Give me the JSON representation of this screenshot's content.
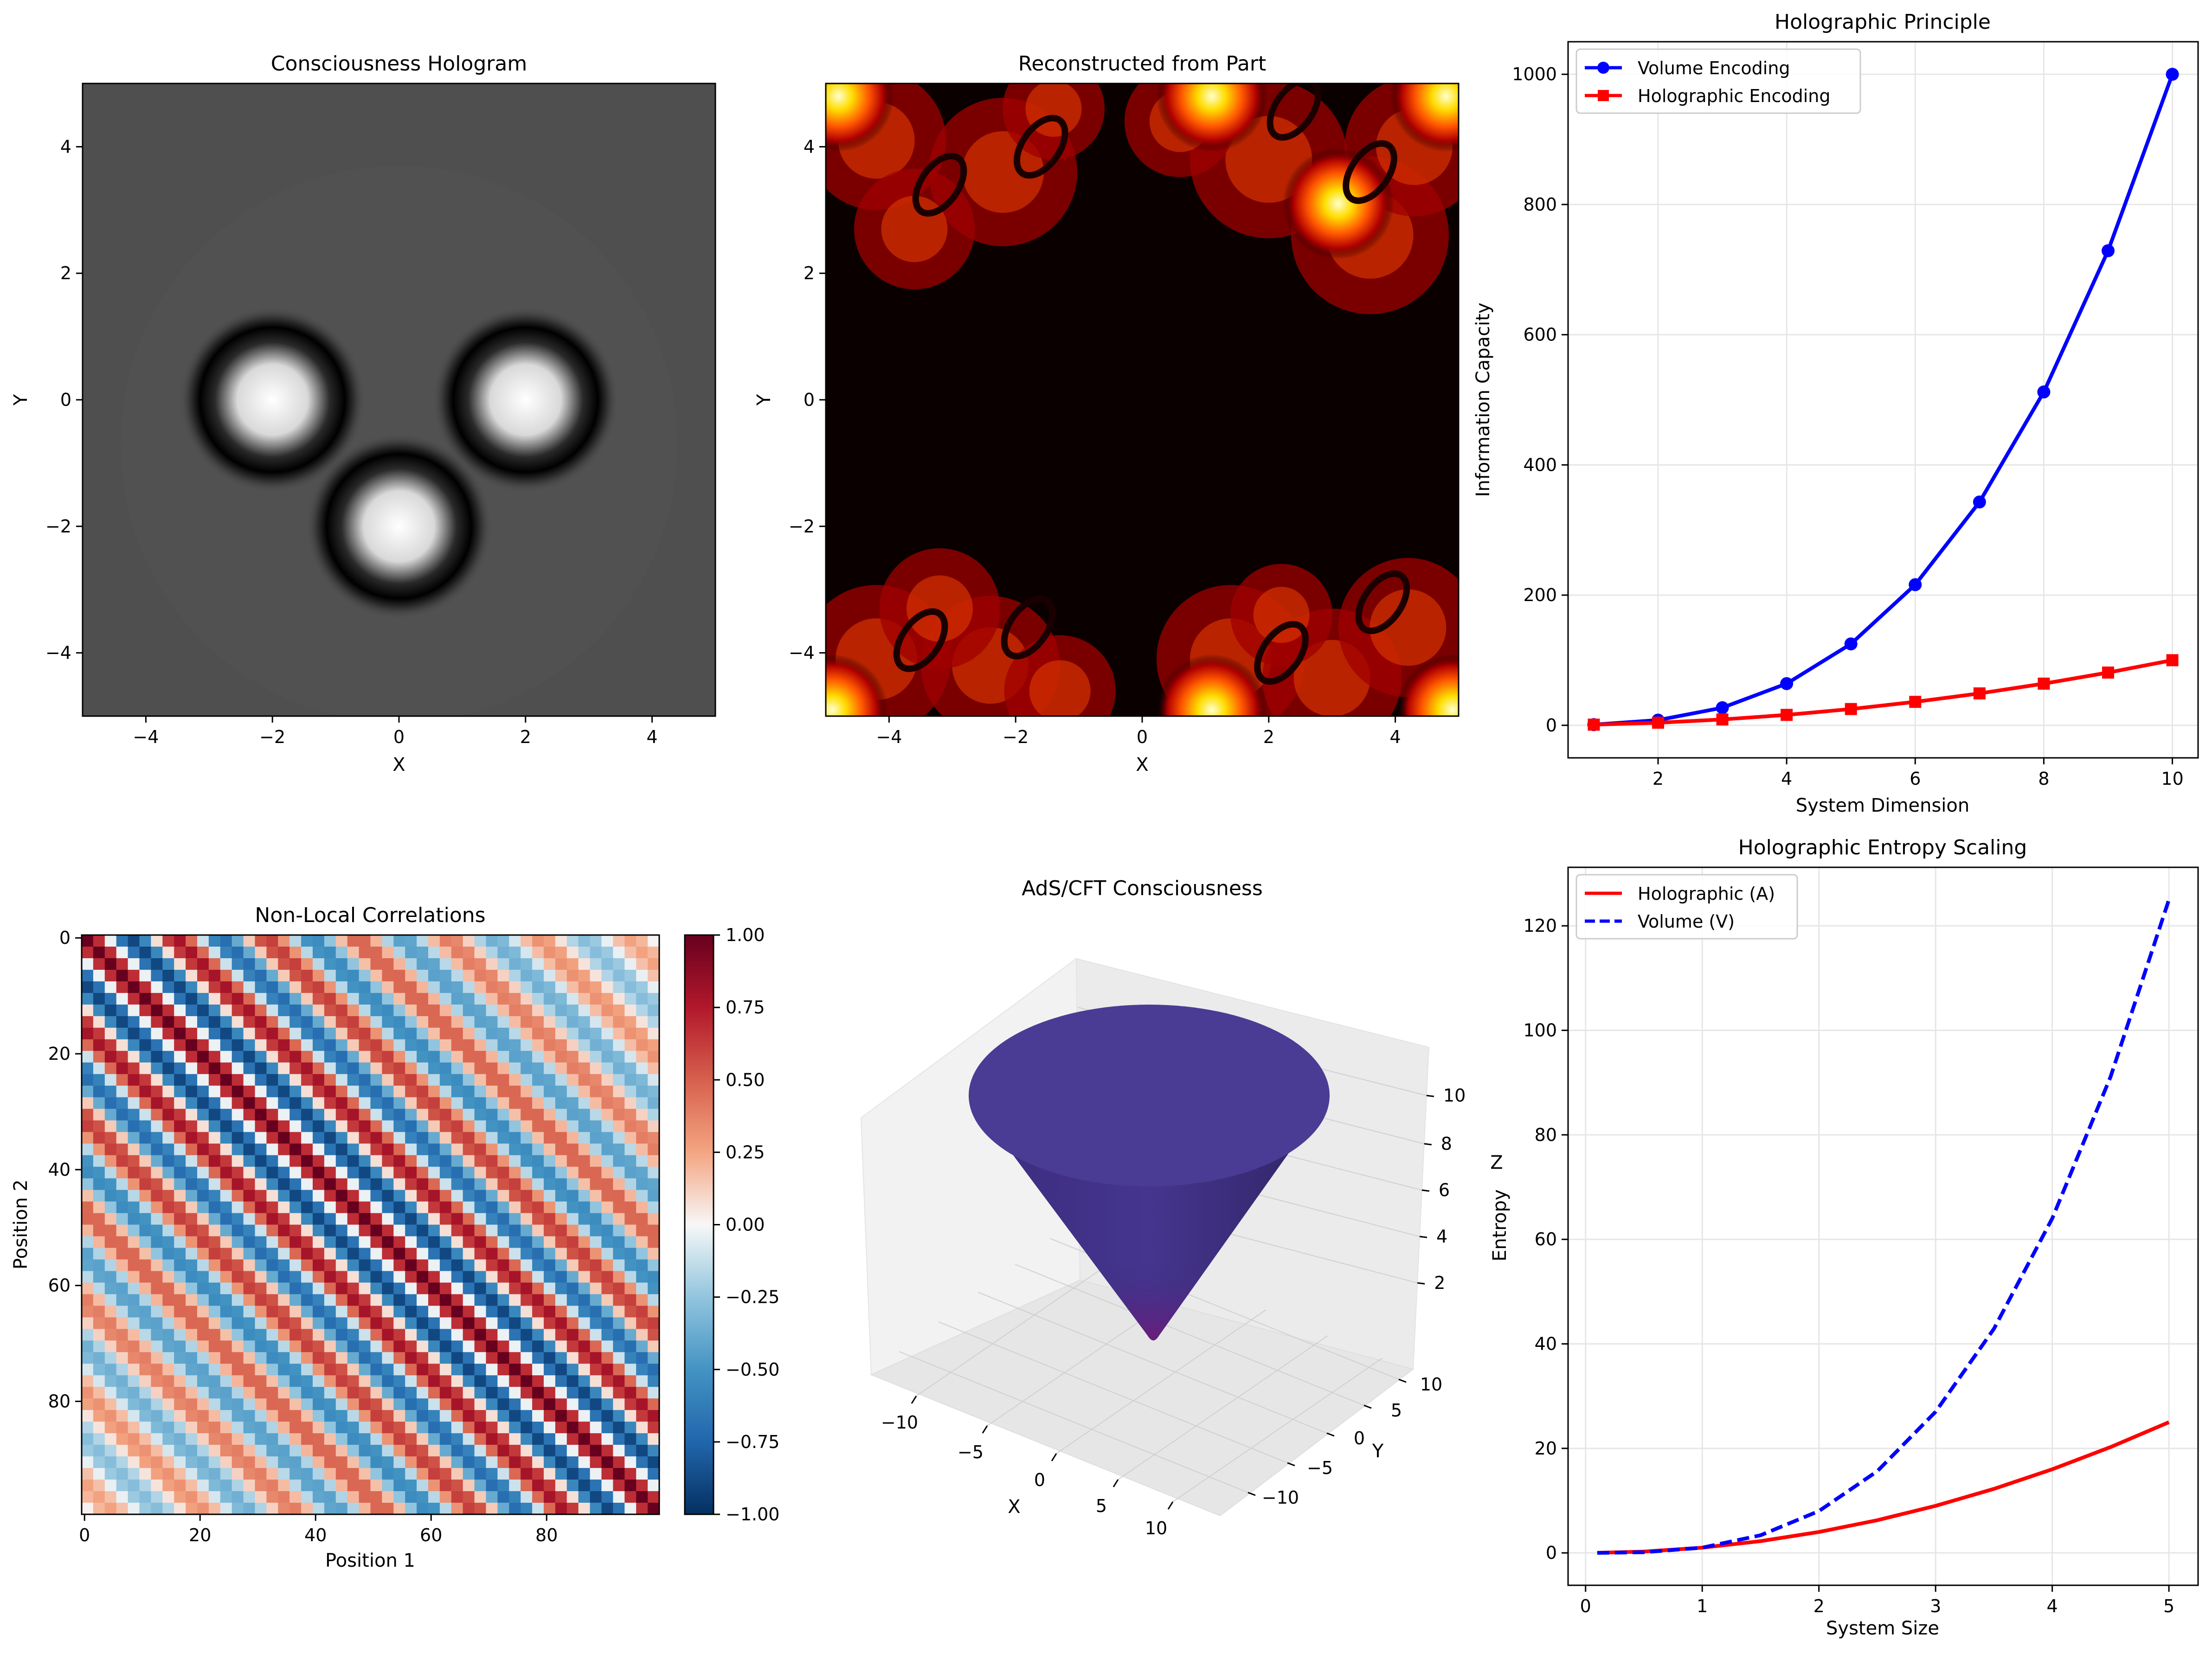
{
  "chart_data": [
    {
      "id": "hologram",
      "type": "heatmap",
      "title": "Consciousness Hologram",
      "xlabel": "X",
      "ylabel": "Y",
      "xlim": [
        -5,
        5
      ],
      "ylim": [
        -5,
        5
      ],
      "xticks": [
        -4,
        -2,
        0,
        2,
        4
      ],
      "yticks": [
        -4,
        -2,
        0,
        2,
        4
      ],
      "colormap": "gray",
      "sources": [
        {
          "x": -2,
          "y": 0
        },
        {
          "x": 2,
          "y": 0
        },
        {
          "x": 0,
          "y": -2
        }
      ]
    },
    {
      "id": "reconstructed",
      "type": "heatmap",
      "title": "Reconstructed from Part",
      "xlabel": "X",
      "ylabel": "Y",
      "xlim": [
        -5,
        5
      ],
      "ylim": [
        -5,
        5
      ],
      "xticks": [
        -4,
        -2,
        0,
        2,
        4
      ],
      "yticks": [
        -4,
        -2,
        0,
        2,
        4
      ],
      "colormap": "hot",
      "bright_spots": [
        {
          "x": 3.1,
          "y": 3.1
        },
        {
          "x": 1.1,
          "y": 4.8
        },
        {
          "x": -4.8,
          "y": 4.8
        },
        {
          "x": 4.8,
          "y": 4.8
        },
        {
          "x": -4.9,
          "y": -4.9
        },
        {
          "x": 1.1,
          "y": -4.9
        },
        {
          "x": 4.9,
          "y": -4.9
        }
      ]
    },
    {
      "id": "principle",
      "type": "line",
      "title": "Holographic Principle",
      "xlabel": "System Dimension",
      "ylabel": "Information Capacity",
      "xlim": [
        0.6,
        10.4
      ],
      "ylim": [
        -50,
        1050
      ],
      "xticks": [
        2,
        4,
        6,
        8,
        10
      ],
      "yticks": [
        0,
        200,
        400,
        600,
        800,
        1000
      ],
      "grid": true,
      "legend": "upper-left",
      "x": [
        1,
        2,
        3,
        4,
        5,
        6,
        7,
        8,
        9,
        10
      ],
      "series": [
        {
          "name": "Volume Encoding",
          "color": "#0000ff",
          "marker": "circle",
          "values": [
            1,
            8,
            27,
            64,
            125,
            216,
            343,
            512,
            729,
            1000
          ]
        },
        {
          "name": "Holographic Encoding",
          "color": "#ff0000",
          "marker": "square",
          "values": [
            1,
            4,
            9,
            16,
            25,
            36,
            49,
            64,
            81,
            100
          ]
        }
      ]
    },
    {
      "id": "correlations",
      "type": "heatmap",
      "title": "Non-Local Correlations",
      "xlabel": "Position 1",
      "ylabel": "Position 2",
      "xticks": [
        0,
        20,
        40,
        60,
        80
      ],
      "yticks": [
        0,
        20,
        40,
        60,
        80
      ],
      "size": 100,
      "colormap": "RdBu_r",
      "clim": [
        -1,
        1
      ],
      "colorbar_ticks": [
        "1.00",
        "0.75",
        "0.50",
        "0.25",
        "0.00",
        "−0.25",
        "−0.50",
        "−0.75",
        "−1.00"
      ]
    },
    {
      "id": "ads",
      "type": "surface3d",
      "title": "AdS/CFT Consciousness",
      "xlabel": "X",
      "ylabel": "Y",
      "zlabel": "Z",
      "xticks": [
        "−10",
        "−5",
        "0",
        "5",
        "10"
      ],
      "yticks": [
        "−10",
        "−5",
        "0",
        "5",
        "10"
      ],
      "zticks": [
        "2",
        "4",
        "6",
        "8",
        "10"
      ],
      "color": "#3d2f86"
    },
    {
      "id": "entropy",
      "type": "line",
      "title": "Holographic Entropy Scaling",
      "xlabel": "System Size",
      "ylabel": "Entropy",
      "xlim": [
        -0.15,
        5.25
      ],
      "ylim": [
        -6.2,
        131.2
      ],
      "xticks": [
        0,
        1,
        2,
        3,
        4,
        5
      ],
      "yticks": [
        0,
        20,
        40,
        60,
        80,
        100,
        120
      ],
      "grid": true,
      "legend": "upper-left",
      "x": [
        0.1,
        0.5,
        1,
        1.5,
        2,
        2.5,
        3,
        3.5,
        4,
        4.5,
        5
      ],
      "series": [
        {
          "name": "Holographic (A)",
          "color": "#ff0000",
          "style": "solid",
          "values": [
            0.01,
            0.25,
            1,
            2.25,
            4,
            6.25,
            9,
            12.25,
            16,
            20.25,
            25
          ]
        },
        {
          "name": "Volume (V)",
          "color": "#0000ff",
          "style": "dashed",
          "values": [
            0.001,
            0.125,
            1,
            3.375,
            8,
            15.625,
            27,
            42.875,
            64,
            91.125,
            125
          ]
        }
      ]
    }
  ]
}
